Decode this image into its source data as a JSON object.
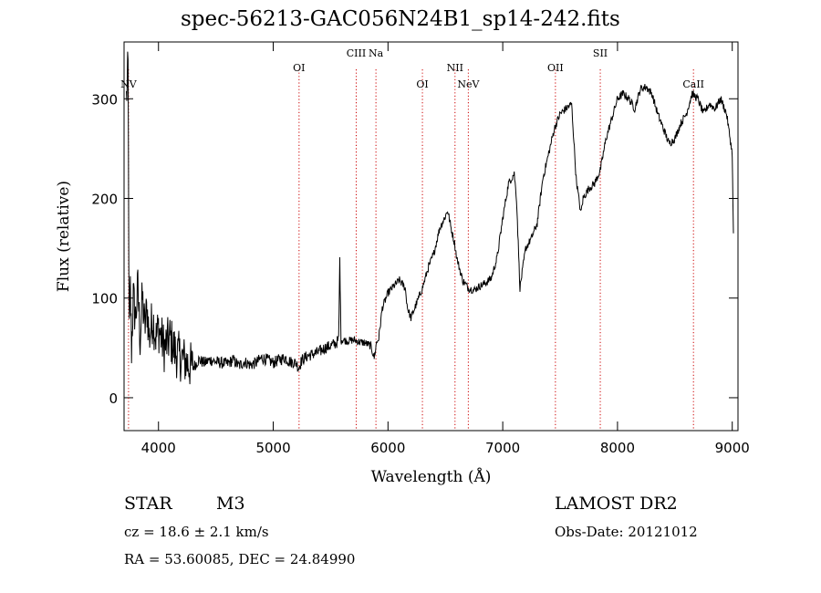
{
  "chart_data": {
    "type": "line",
    "title": "spec-56213-GAC056N24B1_sp14-242.fits",
    "xlabel": "Wavelength (Å)",
    "ylabel": "Flux (relative)",
    "xlim": [
      3700,
      9050
    ],
    "ylim": [
      -33,
      357
    ],
    "x_ticks": [
      4000,
      5000,
      6000,
      7000,
      8000,
      9000
    ],
    "y_ticks": [
      0,
      100,
      200,
      300
    ],
    "grid": false,
    "line_color": "#000000",
    "marker_color": "#cc0000",
    "lines": [
      {
        "name": "NV",
        "x": 3739,
        "tier": 3
      },
      {
        "name": "OI",
        "x": 5225,
        "tier": 2
      },
      {
        "name": "CIII",
        "x": 5723,
        "tier": 1
      },
      {
        "name": "Na",
        "x": 5895,
        "tier": 1
      },
      {
        "name": "OI",
        "x": 6300,
        "tier": 3
      },
      {
        "name": "NII",
        "x": 6584,
        "tier": 2
      },
      {
        "name": "NeV",
        "x": 6700,
        "tier": 3
      },
      {
        "name": "OII",
        "x": 7459,
        "tier": 2
      },
      {
        "name": "SII",
        "x": 7850,
        "tier": 1
      },
      {
        "name": "CaII",
        "x": 8662,
        "tier": 3
      }
    ],
    "series": [
      {
        "x": [
          3720,
          3735,
          3745,
          3755,
          3765,
          3780,
          3800,
          3820,
          3840,
          3860,
          3880,
          3900,
          3920,
          3950,
          3980,
          4000,
          4050,
          4100,
          4150,
          4200,
          4250,
          4300,
          4350,
          4400,
          4450,
          4500,
          4550,
          4600,
          4650,
          4700,
          4750,
          4800,
          4850,
          4900,
          4950,
          5000,
          5050,
          5100,
          5150,
          5200,
          5220,
          5250,
          5300,
          5350,
          5400,
          5450,
          5500,
          5550,
          5570,
          5580,
          5590,
          5600,
          5650,
          5700,
          5750,
          5800,
          5850,
          5880,
          5900,
          5920,
          5950,
          6000,
          6050,
          6100,
          6150,
          6170,
          6200,
          6250,
          6300,
          6350,
          6400,
          6450,
          6500,
          6520,
          6550,
          6580,
          6600,
          6650,
          6700,
          6750,
          6800,
          6850,
          6900,
          6950,
          7000,
          7050,
          7100,
          7120,
          7150,
          7200,
          7250,
          7300,
          7350,
          7400,
          7450,
          7500,
          7550,
          7600,
          7640,
          7680,
          7700,
          7750,
          7800,
          7850,
          7900,
          7950,
          8000,
          8050,
          8100,
          8150,
          8200,
          8250,
          8300,
          8350,
          8400,
          8450,
          8500,
          8550,
          8600,
          8650,
          8700,
          8750,
          8800,
          8850,
          8900,
          8950,
          9000,
          9010
        ],
        "y": [
          300,
          330,
          60,
          110,
          50,
          100,
          80,
          110,
          60,
          100,
          70,
          90,
          60,
          80,
          60,
          70,
          50,
          60,
          45,
          40,
          35,
          30,
          38,
          35,
          38,
          36,
          35,
          34,
          38,
          32,
          36,
          33,
          35,
          40,
          38,
          35,
          38,
          40,
          36,
          35,
          30,
          38,
          42,
          44,
          46,
          50,
          52,
          55,
          58,
          140,
          60,
          58,
          57,
          58,
          56,
          55,
          52,
          40,
          55,
          60,
          90,
          105,
          112,
          118,
          110,
          90,
          80,
          95,
          110,
          130,
          145,
          170,
          182,
          188,
          170,
          155,
          140,
          118,
          110,
          108,
          112,
          115,
          120,
          140,
          180,
          215,
          225,
          200,
          110,
          150,
          160,
          175,
          220,
          245,
          270,
          285,
          290,
          295,
          220,
          185,
          200,
          210,
          215,
          228,
          260,
          280,
          300,
          305,
          300,
          290,
          310,
          312,
          305,
          285,
          270,
          255,
          260,
          275,
          285,
          305,
          300,
          285,
          295,
          290,
          300,
          285,
          245,
          165
        ]
      }
    ]
  },
  "info": {
    "object_type": "STAR",
    "subclass": "M3",
    "survey": "LAMOST DR2",
    "redshift": "cz = 18.6 ± 2.1 km/s",
    "obs_date": "Obs-Date: 20121012",
    "coords": "RA =  53.60085, DEC =  24.84990"
  }
}
